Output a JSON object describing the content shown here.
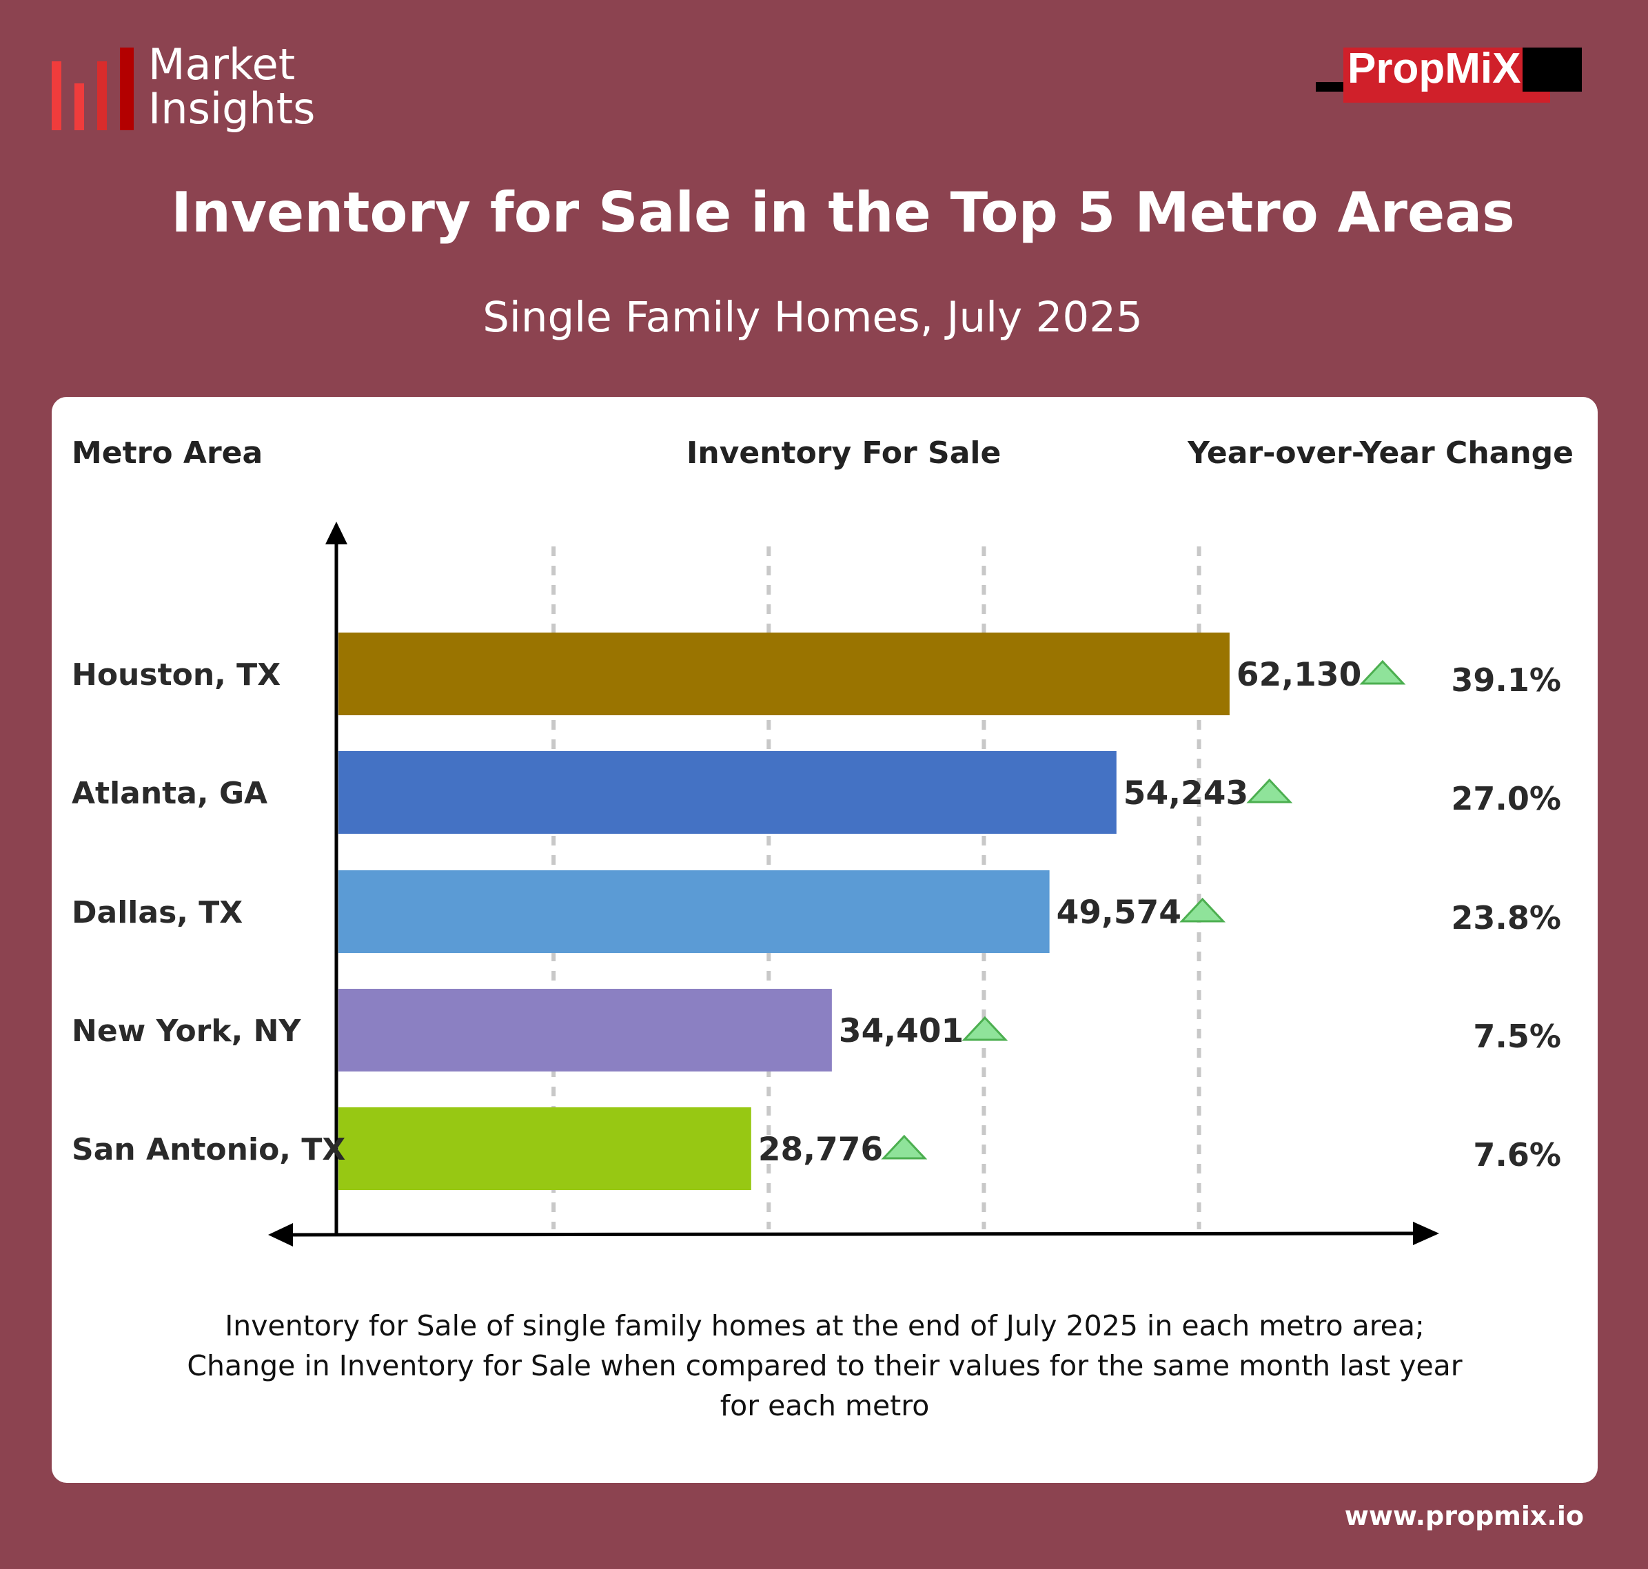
{
  "brand": {
    "logo_line1": "Market",
    "logo_line2": "Insights",
    "partner_logo": "PropMiX",
    "url": "www.propmix.io"
  },
  "header": {
    "title": "Inventory for Sale in the Top 5 Metro Areas",
    "subtitle": "Single Family Homes, July 2025"
  },
  "columns": {
    "metro": "Metro Area",
    "inventory": "Inventory For Sale",
    "yoy": "Year-over-Year Change"
  },
  "colors": {
    "background": "#8c4350",
    "up_arrow": "#8fe39a"
  },
  "chart_data": {
    "type": "bar",
    "orientation": "horizontal",
    "categories": [
      "Houston, TX",
      "Atlanta, GA",
      "Dallas, TX",
      "New York, NY",
      "San Antonio, TX"
    ],
    "values": [
      62130,
      54243,
      49574,
      34401,
      28776
    ],
    "value_labels": [
      "62,130",
      "54,243",
      "49,574",
      "34,401",
      "28,776"
    ],
    "yoy_change": [
      "39.1%",
      "27.0%",
      "23.8%",
      "7.5%",
      "7.6%"
    ],
    "yoy_direction": [
      "up",
      "up",
      "up",
      "up",
      "up"
    ],
    "bar_colors": [
      "#9a7400",
      "#4472c4",
      "#5b9bd5",
      "#8b80c2",
      "#97c813"
    ],
    "xlim": [
      0,
      80000
    ],
    "grid": true,
    "gridlines": [
      15000,
      30000,
      45000,
      60000
    ]
  },
  "footnote": {
    "line1": "Inventory for Sale of single family homes at the end of July 2025 in each metro area;",
    "line2": "Change in Inventory for Sale when compared to their values for the same month last year",
    "line3": "for each metro"
  }
}
